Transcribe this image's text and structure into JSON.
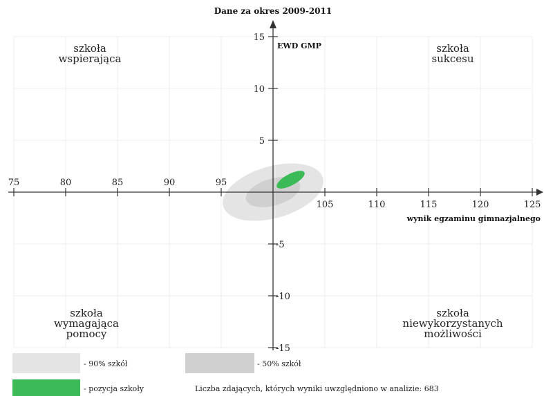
{
  "chart_data": {
    "type": "scatter",
    "title": "Dane za okres 2009-2011",
    "xlabel": "wynik egzaminu gimnazjalnego",
    "ylabel": "EWD GMP",
    "xlim": [
      75,
      125
    ],
    "ylim": [
      -15,
      15
    ],
    "x_ticks": [
      75,
      80,
      85,
      90,
      95,
      105,
      110,
      115,
      120,
      125
    ],
    "y_ticks": [
      15,
      10,
      5,
      -5,
      -10,
      -15
    ],
    "x_tick_labels": [
      "75",
      "80",
      "85",
      "90",
      "95",
      "105",
      "110",
      "115",
      "120",
      "125"
    ],
    "y_tick_labels": [
      "15",
      "10",
      "5",
      "-5",
      "-10",
      "-15"
    ],
    "axis_cross": {
      "x": 100,
      "y": 0
    },
    "grid": true,
    "quadrants": [
      {
        "position": "top-left",
        "lines": [
          "szkoła",
          "wspierająca"
        ]
      },
      {
        "position": "top-right",
        "lines": [
          "szkoła",
          "sukcesu"
        ]
      },
      {
        "position": "bottom-left",
        "lines": [
          "szkoła",
          "wymagająca",
          "pomocy"
        ]
      },
      {
        "position": "bottom-right",
        "lines": [
          "szkoła",
          "niewykorzystanych",
          "możliwości"
        ]
      }
    ],
    "regions": [
      {
        "name": "90% szkół",
        "color": "#e4e4e4",
        "center_x": 100,
        "center_y": 0,
        "rx": 5,
        "ry": 2.5,
        "angle": 16
      },
      {
        "name": "50% szkół",
        "color": "#d0d0d0",
        "center_x": 100,
        "center_y": 0,
        "rx": 2.7,
        "ry": 1.3,
        "angle": 16
      }
    ],
    "school_position": {
      "name": "pozycja szkoły",
      "color": "#3cba58",
      "center_x": 101.7,
      "center_y": 1.2,
      "rx": 1.5,
      "ry": 0.55,
      "angle": 28
    },
    "legend": [
      {
        "label": "- 90% szkół",
        "color": "#e4e4e4"
      },
      {
        "label": "- 50% szkół",
        "color": "#d0d0d0"
      },
      {
        "label": "- pozycja szkoły",
        "color": "#3cba58"
      }
    ],
    "note": "Liczba zdających, których wyniki uwzględniono w analizie: 683"
  }
}
